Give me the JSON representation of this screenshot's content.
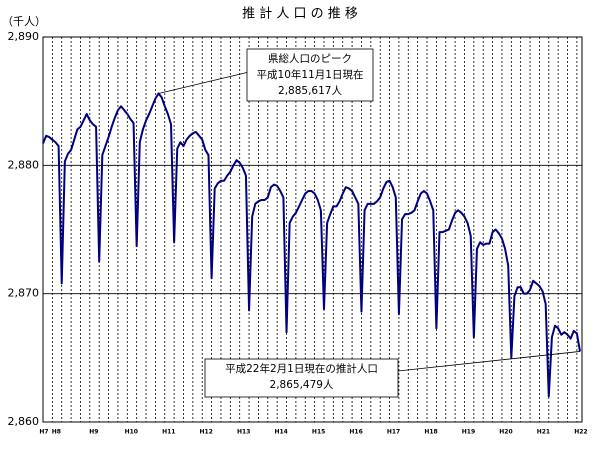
{
  "chart_data": {
    "type": "line",
    "title": "推 計 人 口 の 推 移",
    "y_label": "（千人）",
    "categories": [
      "H7",
      null,
      null,
      "H8",
      null,
      null,
      null,
      null,
      null,
      null,
      null,
      null,
      null,
      null,
      null,
      "H9",
      null,
      null,
      null,
      null,
      null,
      null,
      null,
      null,
      null,
      null,
      null,
      "H10",
      null,
      null,
      null,
      null,
      null,
      null,
      null,
      null,
      null,
      null,
      null,
      "H11",
      null,
      null,
      null,
      null,
      null,
      null,
      null,
      null,
      null,
      null,
      null,
      "H12",
      null,
      null,
      null,
      null,
      null,
      null,
      null,
      null,
      null,
      null,
      null,
      "H13",
      null,
      null,
      null,
      null,
      null,
      null,
      null,
      null,
      null,
      null,
      null,
      "H14",
      null,
      null,
      null,
      null,
      null,
      null,
      null,
      null,
      null,
      null,
      null,
      "H15",
      null,
      null,
      null,
      null,
      null,
      null,
      null,
      null,
      null,
      null,
      null,
      "H16",
      null,
      null,
      null,
      null,
      null,
      null,
      null,
      null,
      null,
      null,
      null,
      "H17",
      null,
      null,
      null,
      null,
      null,
      null,
      null,
      null,
      null,
      null,
      null,
      "H18",
      null,
      null,
      null,
      null,
      null,
      null,
      null,
      null,
      null,
      null,
      null,
      "H19",
      null,
      null,
      null,
      null,
      null,
      null,
      null,
      null,
      null,
      null,
      null,
      "H20",
      null,
      null,
      null,
      null,
      null,
      null,
      null,
      null,
      null,
      null,
      null,
      "H21",
      null,
      null,
      null,
      null,
      null,
      null,
      null,
      null,
      null,
      null,
      null,
      "H22",
      null
    ],
    "series": [
      {
        "color": "#000080",
        "values": [
          2881.7,
          2882.3,
          2882.2,
          2882.0,
          2881.8,
          2881.5,
          2870.8,
          2880.3,
          2880.9,
          2881.2,
          2882.0,
          2882.8,
          2883.0,
          2883.5,
          2884.0,
          2883.5,
          2883.2,
          2883.0,
          2872.5,
          2880.8,
          2881.5,
          2882.2,
          2883.0,
          2883.7,
          2884.3,
          2884.6,
          2884.3,
          2884.0,
          2883.6,
          2883.3,
          2873.7,
          2881.8,
          2882.8,
          2883.5,
          2884.0,
          2884.6,
          2885.2,
          2885.6,
          2885.3,
          2884.6,
          2884.0,
          2883.2,
          2874.0,
          2881.3,
          2881.8,
          2881.5,
          2882.0,
          2882.3,
          2882.5,
          2882.6,
          2882.3,
          2882.0,
          2881.2,
          2880.8,
          2871.2,
          2878.2,
          2878.6,
          2878.8,
          2878.8,
          2879.2,
          2879.5,
          2880.0,
          2880.4,
          2880.2,
          2879.8,
          2879.2,
          2868.7,
          2876.0,
          2877.0,
          2877.2,
          2877.3,
          2877.3,
          2877.5,
          2878.3,
          2878.5,
          2878.4,
          2878.0,
          2877.5,
          2867.0,
          2875.5,
          2876.0,
          2876.3,
          2876.8,
          2877.3,
          2877.8,
          2878.0,
          2878.0,
          2877.8,
          2877.3,
          2876.5,
          2868.8,
          2875.5,
          2876.2,
          2876.8,
          2876.8,
          2877.2,
          2877.8,
          2878.3,
          2878.2,
          2878.0,
          2877.5,
          2877.0,
          2868.6,
          2876.5,
          2877.0,
          2877.0,
          2877.0,
          2877.2,
          2877.5,
          2878.2,
          2878.7,
          2878.8,
          2878.3,
          2877.5,
          2868.4,
          2875.8,
          2876.2,
          2876.2,
          2876.3,
          2876.5,
          2877.2,
          2877.8,
          2878.0,
          2877.8,
          2877.2,
          2876.5,
          2867.3,
          2874.8,
          2874.8,
          2874.9,
          2875.0,
          2875.7,
          2876.3,
          2876.5,
          2876.3,
          2876.0,
          2875.5,
          2874.5,
          2866.6,
          2873.5,
          2874.0,
          2873.8,
          2873.9,
          2873.9,
          2874.8,
          2875.0,
          2874.7,
          2874.3,
          2873.5,
          2872.2,
          2865.0,
          2869.8,
          2870.5,
          2870.5,
          2870.0,
          2870.0,
          2870.3,
          2871.0,
          2870.8,
          2870.6,
          2870.2,
          2869.2,
          2862.0,
          2866.6,
          2867.5,
          2867.3,
          2866.8,
          2867.0,
          2866.8,
          2866.5,
          2867.1,
          2866.9,
          2865.5
        ]
      }
    ],
    "ylim": [
      2860,
      2890
    ],
    "yticks": [
      {
        "value": 2860,
        "label": "2,860"
      },
      {
        "value": 2870,
        "label": "2,870"
      },
      {
        "value": 2880,
        "label": "2,880"
      },
      {
        "value": 2890,
        "label": "2,890"
      }
    ],
    "grid": true,
    "annotations": [
      {
        "lines": [
          "県総人口のピーク",
          "平成10年11月1日現在",
          "2,885,617人"
        ]
      },
      {
        "lines": [
          "平成22年2月1日現在の推計人口",
          "2,865,479人"
        ]
      }
    ]
  }
}
